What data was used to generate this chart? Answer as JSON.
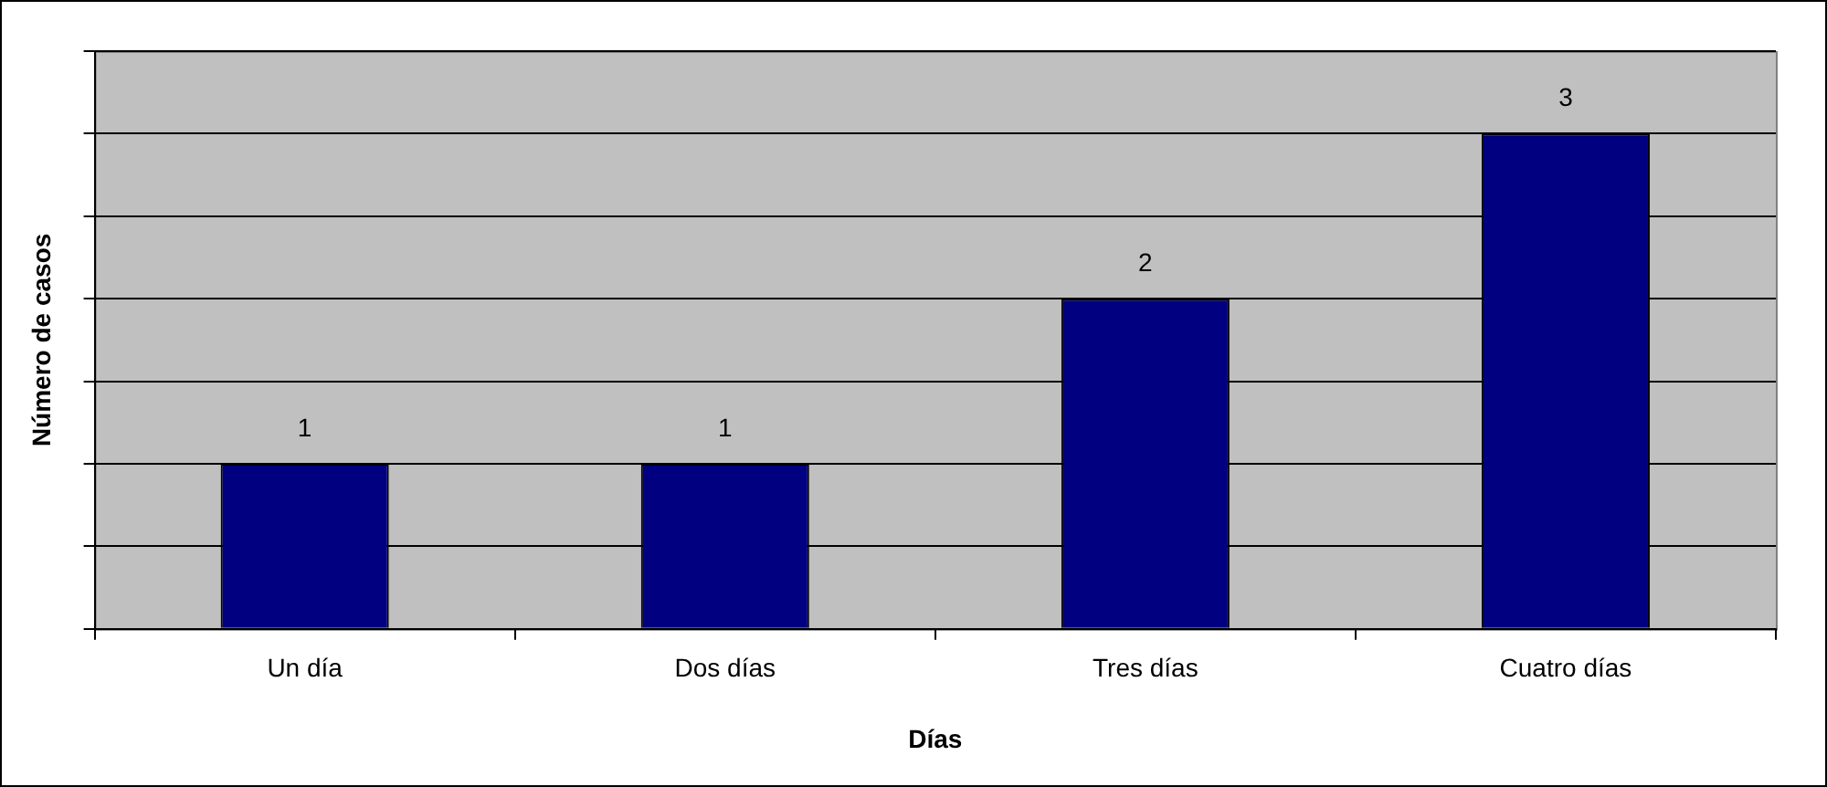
{
  "chart_data": {
    "type": "bar",
    "categories": [
      "Un día",
      "Dos días",
      "Tres días",
      "Cuatro días"
    ],
    "values": [
      1,
      1,
      2,
      3
    ],
    "color": "#000080",
    "xlabel": "Días",
    "ylabel": "Número de casos",
    "ylim": [
      0,
      3.5
    ],
    "yticks": [
      {
        "value": 0,
        "label": null
      },
      {
        "value": 0.5,
        "label": null
      },
      {
        "value": 1,
        "label": null
      },
      {
        "value": 1.5,
        "label": null
      },
      {
        "value": 2,
        "label": null
      },
      {
        "value": 2.5,
        "label": null
      },
      {
        "value": 3,
        "label": null
      },
      {
        "value": 3.5,
        "label": null
      }
    ],
    "tick_labels": "x",
    "grid": "y",
    "data_labels": true,
    "legend": false
  }
}
